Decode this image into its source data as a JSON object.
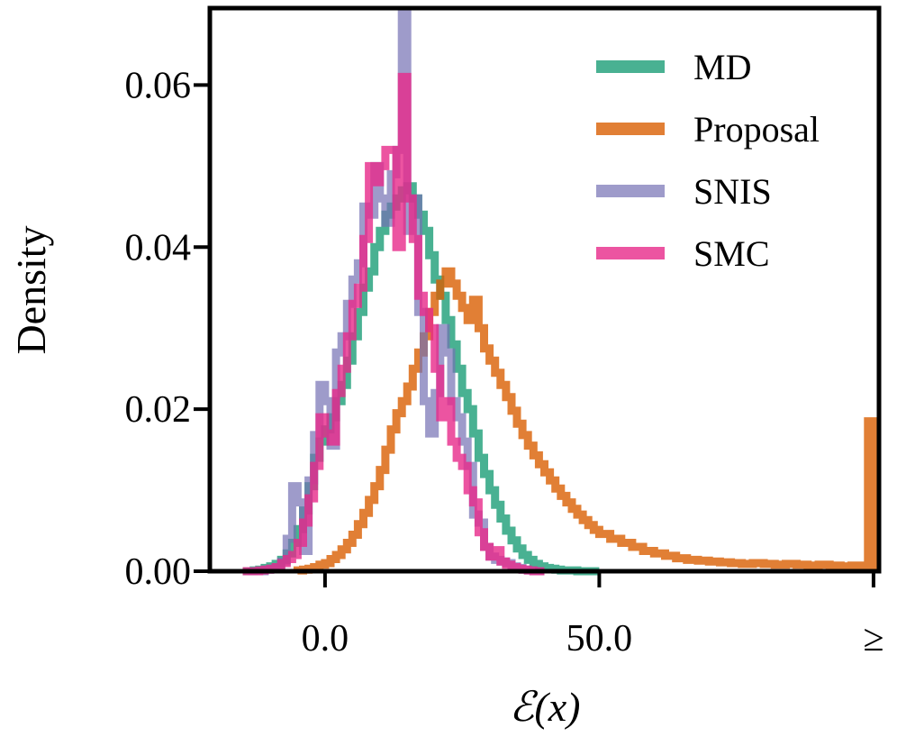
{
  "chart_data": {
    "type": "step-histogram",
    "title": "",
    "xlabel": "ℰ(x)",
    "ylabel": "Density",
    "xlim": [
      -21,
      101
    ],
    "ylim": [
      0,
      0.0695
    ],
    "x_ticks": [
      {
        "value": 0,
        "label": "0.0"
      },
      {
        "value": 50,
        "label": "50.0"
      },
      {
        "value": 100,
        "label": "≥"
      }
    ],
    "y_ticks": [
      {
        "value": 0.0,
        "label": "0.00"
      },
      {
        "value": 0.02,
        "label": "0.02"
      },
      {
        "value": 0.04,
        "label": "0.04"
      },
      {
        "value": 0.06,
        "label": "0.06"
      }
    ],
    "legend": {
      "position": "top-right",
      "entries": [
        "MD",
        "Proposal",
        "SNIS",
        "SMC"
      ]
    },
    "series": [
      {
        "name": "MD",
        "color": "#1b9e77",
        "opacity": 0.8,
        "x": [
          -15,
          -14,
          -13,
          -12,
          -11,
          -10,
          -9,
          -8,
          -7,
          -6,
          -5,
          -4,
          -3,
          -2,
          -1,
          0,
          1,
          2,
          3,
          4,
          5,
          6,
          7,
          8,
          9,
          10,
          11,
          12,
          13,
          14,
          15,
          16,
          17,
          18,
          19,
          20,
          21,
          22,
          23,
          24,
          25,
          26,
          27,
          28,
          29,
          30,
          31,
          32,
          33,
          34,
          35,
          36,
          37,
          38,
          39,
          40,
          41,
          42,
          43,
          44,
          45,
          46,
          47,
          48,
          49,
          50
        ],
        "values": [
          0,
          0,
          0.0001,
          0.0002,
          0.0004,
          0.0006,
          0.0009,
          0.0014,
          0.0022,
          0.0035,
          0.0052,
          0.0075,
          0.0105,
          0.014,
          0.016,
          0.0175,
          0.019,
          0.021,
          0.023,
          0.026,
          0.029,
          0.032,
          0.035,
          0.037,
          0.04,
          0.042,
          0.044,
          0.045,
          0.046,
          0.047,
          0.0475,
          0.046,
          0.044,
          0.042,
          0.039,
          0.036,
          0.034,
          0.031,
          0.028,
          0.025,
          0.022,
          0.02,
          0.017,
          0.014,
          0.012,
          0.01,
          0.0082,
          0.0065,
          0.005,
          0.0038,
          0.0028,
          0.002,
          0.0014,
          0.0009,
          0.0006,
          0.0004,
          0.0003,
          0.0002,
          0.0001,
          0.0001,
          0.0001,
          0,
          0,
          0,
          0,
          0
        ]
      },
      {
        "name": "Proposal",
        "color": "#d95f02",
        "opacity": 0.8,
        "x": [
          -5,
          -4,
          -3,
          -2,
          -1,
          0,
          1,
          2,
          3,
          4,
          5,
          6,
          7,
          8,
          9,
          10,
          11,
          12,
          13,
          14,
          15,
          16,
          17,
          18,
          19,
          20,
          21,
          22,
          23,
          24,
          25,
          26,
          27,
          28,
          29,
          30,
          31,
          32,
          33,
          34,
          35,
          36,
          37,
          38,
          39,
          40,
          41,
          42,
          43,
          44,
          45,
          46,
          47,
          48,
          49,
          50,
          52,
          54,
          56,
          58,
          60,
          62,
          64,
          66,
          68,
          70,
          72,
          74,
          76,
          78,
          80,
          82,
          84,
          86,
          88,
          90,
          92,
          94,
          96,
          98,
          99,
          100
        ],
        "values": [
          0.0001,
          0.0002,
          0.0003,
          0.0005,
          0.0008,
          0.001,
          0.0015,
          0.002,
          0.0027,
          0.0035,
          0.0045,
          0.0058,
          0.0072,
          0.0088,
          0.0105,
          0.0125,
          0.015,
          0.0175,
          0.0195,
          0.021,
          0.0228,
          0.025,
          0.027,
          0.029,
          0.032,
          0.034,
          0.0355,
          0.037,
          0.0355,
          0.034,
          0.0325,
          0.031,
          0.0335,
          0.03,
          0.0275,
          0.026,
          0.0245,
          0.023,
          0.0215,
          0.0198,
          0.0182,
          0.0168,
          0.0155,
          0.0143,
          0.0132,
          0.0122,
          0.0112,
          0.0102,
          0.0093,
          0.0085,
          0.0077,
          0.007,
          0.0063,
          0.0057,
          0.0051,
          0.0046,
          0.004,
          0.0035,
          0.003,
          0.0025,
          0.0022,
          0.0019,
          0.0016,
          0.0014,
          0.0013,
          0.0012,
          0.0011,
          0.001,
          0.0009,
          0.001,
          0.0009,
          0.0008,
          0.0009,
          0.0008,
          0.0007,
          0.0008,
          0.0007,
          0.0006,
          0.0007,
          0.0006,
          0.0185,
          0
        ]
      },
      {
        "name": "SNIS",
        "color": "#7570b3",
        "opacity": 0.7,
        "x": [
          -14,
          -13,
          -12,
          -11,
          -10,
          -9,
          -8,
          -7,
          -6,
          -5,
          -4,
          -3,
          -2,
          -1,
          0,
          1,
          2,
          3,
          4,
          5,
          6,
          7,
          8,
          9,
          10,
          11,
          12,
          13,
          14,
          15,
          16,
          17,
          18,
          19,
          20,
          21,
          22,
          23,
          24,
          25,
          26,
          27,
          28,
          29,
          30,
          31,
          32,
          33,
          34,
          35,
          36,
          37,
          38,
          39,
          40
        ],
        "values": [
          0,
          0,
          0,
          0.0002,
          0.0003,
          0.0005,
          0.0012,
          0.004,
          0.0105,
          0.0085,
          0.0025,
          0.0112,
          0.0168,
          0.023,
          0.021,
          0.0155,
          0.027,
          0.029,
          0.033,
          0.036,
          0.038,
          0.045,
          0.044,
          0.05,
          0.046,
          0.043,
          0.049,
          0.052,
          0.069,
          0.042,
          0.046,
          0.032,
          0.021,
          0.017,
          0.022,
          0.03,
          0.027,
          0.021,
          0.019,
          0.016,
          0.013,
          0.007,
          0.006,
          0.003,
          0.0018,
          0.0014,
          0.0012,
          0.001,
          0.0006,
          0.0004,
          0.0002,
          0.0001,
          0,
          0,
          0
        ]
      },
      {
        "name": "SMC",
        "color": "#e7298a",
        "opacity": 0.8,
        "x": [
          -15,
          -14,
          -13,
          -12,
          -11,
          -10,
          -9,
          -8,
          -7,
          -6,
          -5,
          -4,
          -3,
          -2,
          -1,
          0,
          1,
          2,
          3,
          4,
          5,
          6,
          7,
          8,
          9,
          10,
          11,
          12,
          13,
          14,
          15,
          16,
          17,
          18,
          19,
          20,
          21,
          22,
          23,
          24,
          25,
          26,
          27,
          28,
          29,
          30,
          31,
          32,
          33,
          34,
          35,
          36,
          37,
          38,
          39,
          40
        ],
        "values": [
          0,
          0,
          0,
          0.0001,
          0.0002,
          0.0003,
          0.0005,
          0.001,
          0.0015,
          0.002,
          0.0035,
          0.006,
          0.009,
          0.013,
          0.019,
          0.017,
          0.016,
          0.022,
          0.025,
          0.029,
          0.033,
          0.035,
          0.041,
          0.05,
          0.048,
          0.05,
          0.052,
          0.052,
          0.04,
          0.061,
          0.046,
          0.041,
          0.034,
          0.032,
          0.03,
          0.025,
          0.019,
          0.021,
          0.016,
          0.014,
          0.013,
          0.01,
          0.0085,
          0.0048,
          0.003,
          0.0018,
          0.0026,
          0.0012,
          0.0008,
          0.0005,
          0.0003,
          0.0002,
          0.0001,
          0,
          0,
          0
        ]
      }
    ]
  }
}
